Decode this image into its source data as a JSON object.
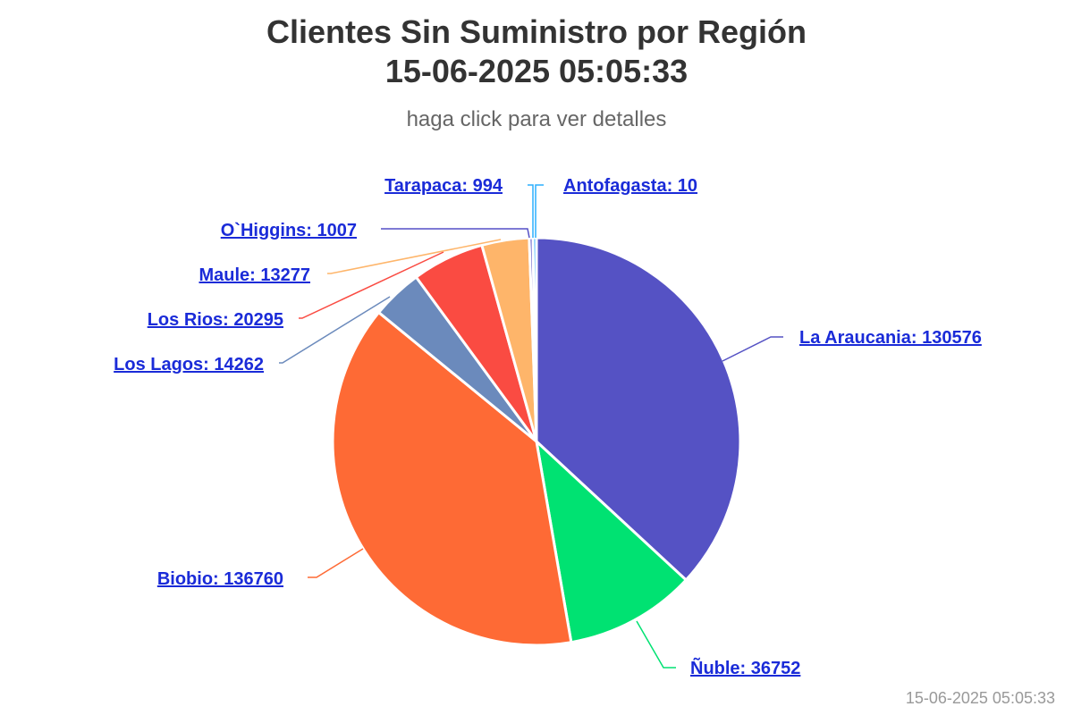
{
  "header": {
    "title_line1": "Clientes Sin Suministro por Región",
    "title_line2": "15-06-2025 05:05:33",
    "subtitle": "haga click para ver detalles"
  },
  "footer": {
    "timestamp": "15-06-2025 05:05:33"
  },
  "chart_data": {
    "type": "pie",
    "title": "Clientes Sin Suministro por Región 15-06-2025 05:05:33",
    "subtitle": "haga click para ver detalles",
    "slices": [
      {
        "name": "La Araucania",
        "value": 130576,
        "color": "#5552c4",
        "label": "La Araucania: 130576"
      },
      {
        "name": "Ñuble",
        "value": 36752,
        "color": "#00e272",
        "label": "Ñuble: 36752"
      },
      {
        "name": "Biobio",
        "value": 136760,
        "color": "#fe6a35",
        "label": "Biobio: 136760"
      },
      {
        "name": "Los Lagos",
        "value": 14262,
        "color": "#6b8abc",
        "label": "Los Lagos: 14262"
      },
      {
        "name": "Los Rios",
        "value": 20295,
        "color": "#fa4b42",
        "label": "Los Rios: 20295"
      },
      {
        "name": "Maule",
        "value": 13277,
        "color": "#feb56a",
        "label": "Maule: 13277"
      },
      {
        "name": "O`Higgins",
        "value": 1007,
        "color": "#544fc5",
        "label": "O`Higgins: 1007"
      },
      {
        "name": "Tarapaca",
        "value": 994,
        "color": "#2caffe",
        "label": "Tarapaca: 994"
      },
      {
        "name": "Antofagasta",
        "value": 10,
        "color": "#2caffe",
        "label": "Antofagasta: 10"
      }
    ]
  }
}
